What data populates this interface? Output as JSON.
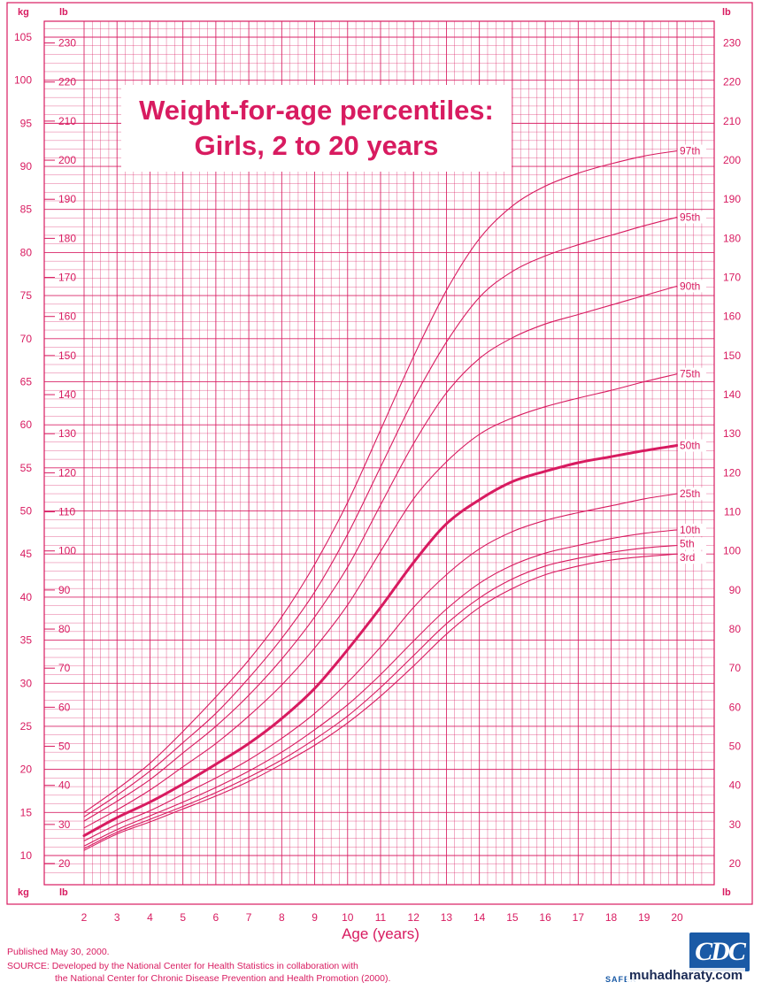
{
  "title": {
    "line1": "Weight-for-age percentiles:",
    "line2": "Girls, 2 to 20 years"
  },
  "colors": {
    "accent": "#d81b60",
    "grid": "#d81b60",
    "logo": "#1a5aa6"
  },
  "axis_units": {
    "kg": "kg",
    "lb": "lb"
  },
  "footer": {
    "published": "Published May 30, 2000.",
    "source_line1": "SOURCE: Developed by the National Center for Health Statistics in collaboration with",
    "source_line2": "the National Center for Chronic Disease Prevention and Health Promotion (2000)."
  },
  "logo_text": "CDC",
  "safer_text": "SAFER",
  "watermark": "muhadharaty.com",
  "chart_data": {
    "type": "line",
    "xlabel": "Age (years)",
    "xlim": [
      2,
      20.8
    ],
    "x_ticks": [
      2,
      3,
      4,
      5,
      6,
      7,
      8,
      9,
      10,
      11,
      12,
      13,
      14,
      15,
      16,
      17,
      18,
      19,
      20
    ],
    "ylim_kg": [
      8,
      107
    ],
    "kg_ticks": [
      10,
      15,
      20,
      25,
      30,
      35,
      40,
      45,
      50,
      55,
      60,
      65,
      70,
      75,
      80,
      85,
      90,
      95,
      100,
      105
    ],
    "lb_ticks": [
      20,
      30,
      40,
      50,
      60,
      70,
      80,
      90,
      100,
      110,
      120,
      130,
      140,
      150,
      160,
      170,
      180,
      190,
      200,
      210,
      220,
      230
    ],
    "grid": true,
    "x": [
      2,
      3,
      4,
      5,
      6,
      7,
      8,
      9,
      10,
      11,
      12,
      13,
      14,
      15,
      16,
      17,
      18,
      19,
      20
    ],
    "series": [
      {
        "name": "97th",
        "bold": false,
        "values": [
          15.0,
          17.7,
          20.7,
          24.4,
          28.4,
          32.7,
          37.7,
          43.8,
          51.0,
          59.4,
          67.9,
          75.6,
          81.6,
          85.4,
          87.7,
          89.2,
          90.3,
          91.2,
          91.8
        ]
      },
      {
        "name": "95th",
        "bold": false,
        "values": [
          14.5,
          17.0,
          19.8,
          23.1,
          26.5,
          30.6,
          35.2,
          40.6,
          47.3,
          55.1,
          62.9,
          69.6,
          74.8,
          77.8,
          79.6,
          80.9,
          82.0,
          83.1,
          84.1
        ]
      },
      {
        "name": "90th",
        "bold": false,
        "values": [
          14.0,
          16.3,
          18.8,
          21.9,
          25.0,
          28.6,
          32.8,
          37.7,
          43.5,
          50.7,
          57.8,
          63.7,
          67.7,
          70.1,
          71.7,
          72.8,
          73.9,
          75.0,
          76.1
        ]
      },
      {
        "name": "75th",
        "bold": false,
        "values": [
          13.2,
          15.3,
          17.6,
          20.3,
          23.0,
          26.2,
          29.8,
          34.1,
          39.1,
          45.3,
          51.4,
          55.7,
          58.9,
          60.8,
          62.1,
          63.1,
          64.0,
          65.0,
          65.9
        ]
      },
      {
        "name": "50th",
        "bold": true,
        "values": [
          12.3,
          14.4,
          16.2,
          18.3,
          20.6,
          23.0,
          25.9,
          29.4,
          33.9,
          38.8,
          44.0,
          48.5,
          51.3,
          53.4,
          54.6,
          55.6,
          56.3,
          57.0,
          57.6
        ]
      },
      {
        "name": "25th",
        "bold": false,
        "values": [
          11.7,
          13.6,
          15.2,
          17.1,
          19.0,
          21.1,
          23.6,
          26.5,
          30.1,
          34.2,
          38.8,
          42.6,
          45.6,
          47.6,
          48.9,
          49.8,
          50.6,
          51.4,
          52.0
        ]
      },
      {
        "name": "10th",
        "bold": false,
        "values": [
          11.1,
          13.0,
          14.6,
          16.2,
          17.9,
          19.8,
          22.0,
          24.6,
          27.5,
          31.0,
          34.9,
          38.6,
          41.6,
          43.7,
          45.1,
          46.0,
          46.8,
          47.4,
          47.8
        ]
      },
      {
        "name": "5th",
        "bold": false,
        "values": [
          10.8,
          12.7,
          14.2,
          15.7,
          17.3,
          19.1,
          21.1,
          23.5,
          26.2,
          29.5,
          33.2,
          36.9,
          39.9,
          42.1,
          43.6,
          44.5,
          45.2,
          45.7,
          46.0
        ]
      },
      {
        "name": "3rd",
        "bold": false,
        "values": [
          10.6,
          12.5,
          13.9,
          15.4,
          16.9,
          18.6,
          20.6,
          22.8,
          25.4,
          28.5,
          32.0,
          35.7,
          38.8,
          41.0,
          42.6,
          43.6,
          44.3,
          44.7,
          45.0
        ]
      }
    ]
  }
}
